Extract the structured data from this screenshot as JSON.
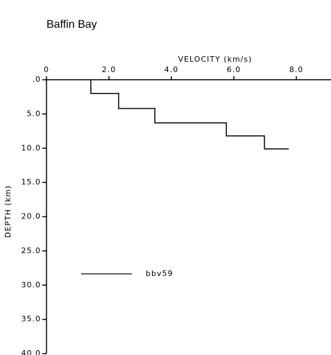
{
  "chart_data": {
    "type": "line",
    "title": "Baffin Bay",
    "x_label": "VELOCITY (km/s)",
    "y_label": "DEPTH (km)",
    "xlim": [
      0,
      9
    ],
    "ylim": [
      0,
      40
    ],
    "y_inverted": true,
    "x_axis_position": "top",
    "xticks": [
      {
        "value": 0,
        "label": "0"
      },
      {
        "value": 2,
        "label": "2.0"
      },
      {
        "value": 4,
        "label": "4.0"
      },
      {
        "value": 6,
        "label": "6.0"
      },
      {
        "value": 8,
        "label": "8.0"
      }
    ],
    "yticks": [
      {
        "value": 0,
        "label": ".0"
      },
      {
        "value": 5,
        "label": "5.0"
      },
      {
        "value": 10,
        "label": "10.0"
      },
      {
        "value": 15,
        "label": "15.0"
      },
      {
        "value": 20,
        "label": "20.0"
      },
      {
        "value": 25,
        "label": "25.0"
      },
      {
        "value": 30,
        "label": "30.0"
      },
      {
        "value": 35,
        "label": "35.0"
      },
      {
        "value": 40,
        "label": "40.0"
      }
    ],
    "x": [
      1.42,
      1.42,
      2.31,
      2.31,
      3.47,
      3.47,
      5.76,
      5.76,
      6.98,
      6.98,
      7.76
    ],
    "series": [
      {
        "name": "bbv59",
        "color": "#000000",
        "values": [
          0,
          2.0,
          2.0,
          4.2,
          4.2,
          6.3,
          6.3,
          8.2,
          8.2,
          10.1,
          10.1
        ]
      }
    ]
  }
}
